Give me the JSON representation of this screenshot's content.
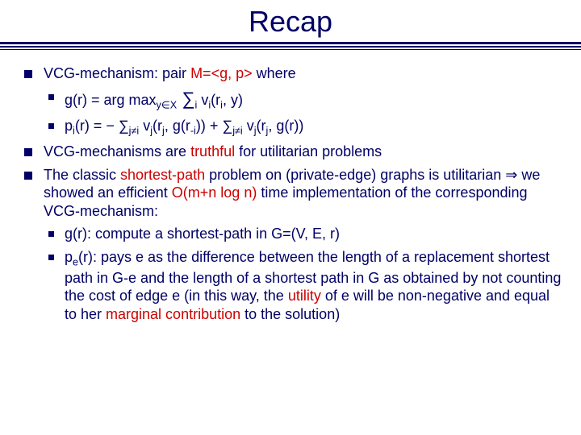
{
  "title": "Recap",
  "b1_a": "VCG-mechanism: pair ",
  "b1_m": "M=<g, p>",
  "b1_b": " where",
  "b1s1_a": "g(r) = arg max",
  "b1s1_sub1": "y∈X",
  "b1s1_b": " ∑",
  "b1s1_sub2": "i",
  "b1s1_c": " v",
  "b1s1_sub3": "i",
  "b1s1_d": "(r",
  "b1s1_sub4": "i",
  "b1s1_e": ", y)",
  "b1s2_a": "p",
  "b1s2_sub1": "i",
  "b1s2_b": "(r) = − ∑",
  "b1s2_sub2": "j≠i",
  "b1s2_c": " v",
  "b1s2_sub3": "j",
  "b1s2_d": "(r",
  "b1s2_sub4": "j",
  "b1s2_e": ", g(r",
  "b1s2_sub5": "-i",
  "b1s2_f": ")) + ∑",
  "b1s2_sub6": "j≠i",
  "b1s2_g": " v",
  "b1s2_sub7": "j",
  "b1s2_h": "(r",
  "b1s2_sub8": "j",
  "b1s2_i": ", g(r))",
  "b2_a": "VCG-mechanisms are ",
  "b2_red": "truthful",
  "b2_b": " for utilitarian problems",
  "b3_a": "The classic ",
  "b3_r1": "shortest-path",
  "b3_b": " problem on (private-edge) graphs is utilitarian ",
  "b3_arrow": "⇒",
  "b3_c": " we showed an efficient ",
  "b3_r2": "O(m+n log n)",
  "b3_d": " time implementation of the corresponding VCG-mechanism:",
  "b3s1": "g(r): compute a shortest-path in G=(V, E, r)",
  "b3s2_a": "p",
  "b3s2_sub": "e",
  "b3s2_b": "(r): pays e as the difference between the length of a replacement shortest path in G-e and the length of a shortest path in G as obtained by not counting the cost of edge e (in this way, the ",
  "b3s2_r1": "utility",
  "b3s2_c": " of e will be non-negative and equal to her ",
  "b3s2_r2": "marginal contribution",
  "b3s2_d": " to the solution)"
}
